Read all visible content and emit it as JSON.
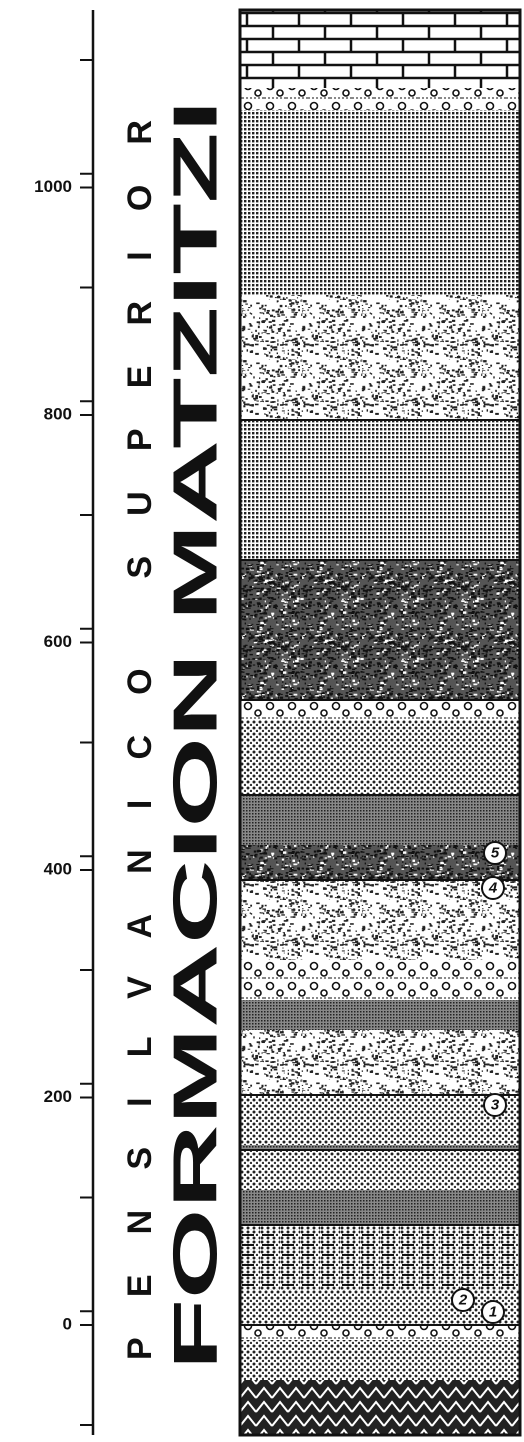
{
  "axis": {
    "ticks": [
      0,
      200,
      400,
      600,
      800,
      1000
    ]
  },
  "labels": {
    "period": "PENSILVANICO SUPERIOR",
    "formation": "FORMACION MATZITZI"
  },
  "markers": [
    "1",
    "2",
    "3",
    "4",
    "5"
  ]
}
